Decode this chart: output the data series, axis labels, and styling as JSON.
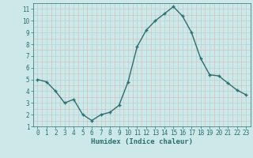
{
  "x": [
    0,
    1,
    2,
    3,
    4,
    5,
    6,
    7,
    8,
    9,
    10,
    11,
    12,
    13,
    14,
    15,
    16,
    17,
    18,
    19,
    20,
    21,
    22,
    23
  ],
  "y": [
    5.0,
    4.8,
    4.0,
    3.0,
    3.3,
    2.0,
    1.5,
    2.0,
    2.2,
    2.8,
    4.8,
    7.8,
    9.2,
    10.0,
    10.6,
    11.2,
    10.4,
    9.0,
    6.8,
    5.4,
    5.3,
    4.7,
    4.1,
    3.7
  ],
  "xlabel": "Humidex (Indice chaleur)",
  "bg_color": "#cce8e8",
  "line_color": "#2d6e6e",
  "grid_color": "#b8d0d0",
  "xlim": [
    -0.5,
    23.5
  ],
  "ylim": [
    1,
    11.5
  ],
  "yticks": [
    1,
    2,
    3,
    4,
    5,
    6,
    7,
    8,
    9,
    10,
    11
  ],
  "xticks": [
    0,
    1,
    2,
    3,
    4,
    5,
    6,
    7,
    8,
    9,
    10,
    11,
    12,
    13,
    14,
    15,
    16,
    17,
    18,
    19,
    20,
    21,
    22,
    23
  ],
  "marker": "+",
  "marker_size": 3.5,
  "line_width": 1.0,
  "tick_fontsize": 5.5,
  "xlabel_fontsize": 6.5
}
